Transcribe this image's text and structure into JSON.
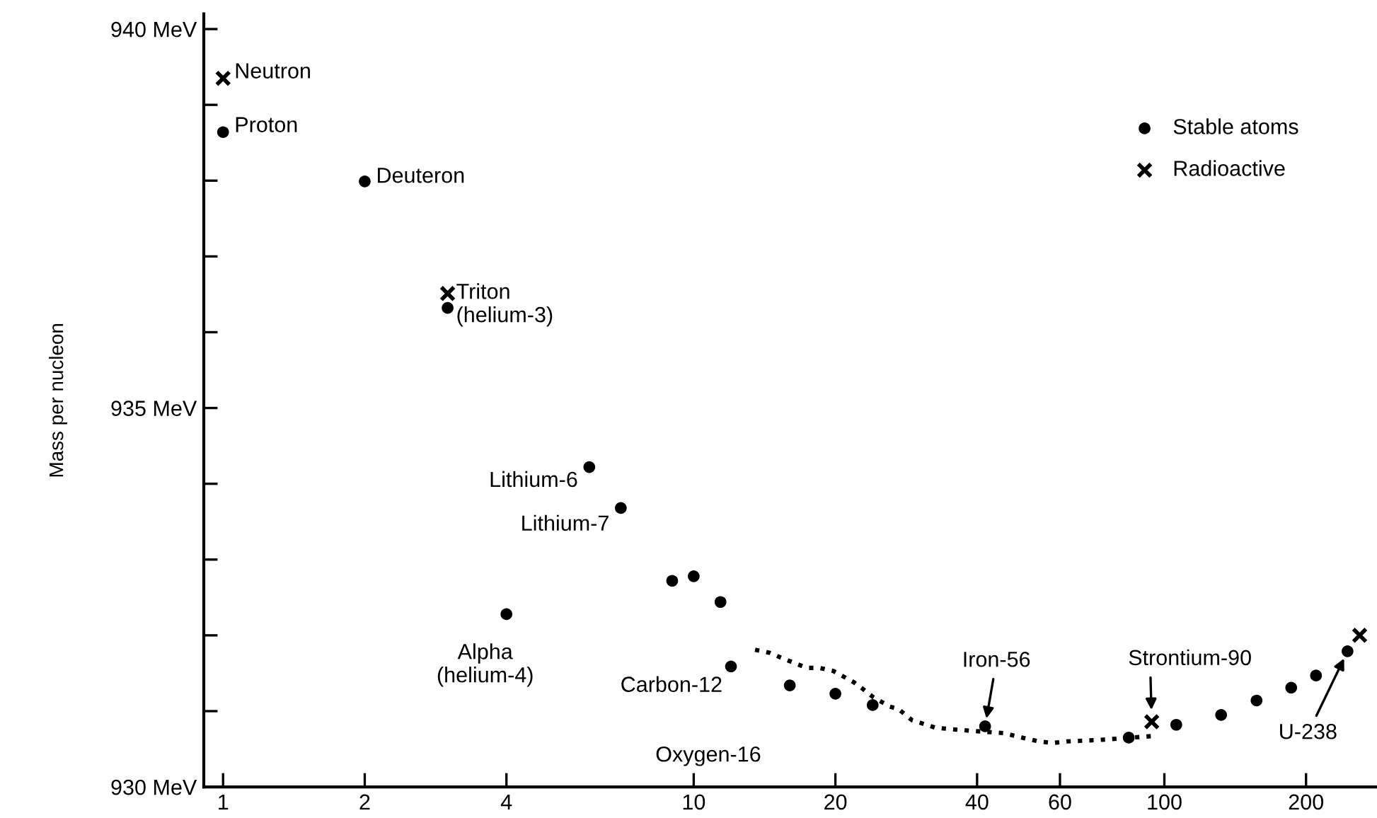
{
  "chart_data": {
    "type": "scatter",
    "ylabel": "Mass per nucleon",
    "log": "x",
    "xlim": [
      0.91,
      283
    ],
    "ylim": [
      930,
      940.2
    ],
    "xticks": [
      1,
      2,
      4,
      10,
      20,
      40,
      60,
      100,
      200
    ],
    "yticks": [
      {
        "value": 930,
        "label": "930 MeV"
      },
      {
        "value": 931,
        "label": null
      },
      {
        "value": 932,
        "label": null
      },
      {
        "value": 933,
        "label": null
      },
      {
        "value": 934,
        "label": null
      },
      {
        "value": 935,
        "label": "935 MeV"
      },
      {
        "value": 936,
        "label": null
      },
      {
        "value": 937,
        "label": null
      },
      {
        "value": 938,
        "label": null
      },
      {
        "value": 939,
        "label": null
      },
      {
        "value": 940,
        "label": "940 MeV"
      }
    ],
    "grid": false,
    "legend": "top right",
    "series": [
      {
        "name": "Stable atoms",
        "color": "#000000",
        "marker": "circle",
        "x": [
          1,
          2,
          3,
          4,
          6,
          7,
          9,
          10,
          11.4,
          12,
          16,
          20,
          24,
          41.6,
          84,
          106,
          132,
          157,
          186,
          210,
          245
        ],
        "values": [
          938.64,
          937.99,
          936.32,
          932.28,
          934.22,
          933.68,
          932.72,
          932.78,
          932.44,
          931.59,
          931.34,
          931.23,
          931.08,
          930.8,
          930.65,
          930.82,
          930.95,
          931.14,
          931.31,
          931.47,
          931.79
        ]
      },
      {
        "name": "Radioactive",
        "color": "#000000",
        "marker": "cross",
        "x": [
          1,
          3,
          94,
          260
        ],
        "values": [
          939.35,
          936.51,
          930.86,
          932.0
        ]
      },
      {
        "type": "line",
        "color": "#000000",
        "marker": "none",
        "line_style": "dotted",
        "x": [
          13.5,
          14.5,
          15.4,
          17.4,
          18.5,
          19.8,
          21.9,
          22.9,
          24.0,
          26.1,
          27.2,
          29.1,
          32.7,
          37.1,
          45.6,
          49.9,
          54.2,
          58.0,
          62.1,
          72.8,
          94.0
        ],
        "values": [
          931.81,
          931.77,
          931.7,
          931.57,
          931.57,
          931.53,
          931.38,
          931.29,
          931.19,
          931.06,
          931.03,
          930.88,
          930.78,
          930.75,
          930.71,
          930.65,
          930.6,
          930.58,
          930.6,
          930.62,
          930.67
        ]
      }
    ],
    "annotations": [
      {
        "text": "Neutron",
        "x": 1,
        "y": 939.35
      },
      {
        "text": "Proton",
        "x": 1,
        "y": 938.64
      },
      {
        "text": "Deuteron",
        "x": 2,
        "y": 937.99
      },
      {
        "text": "Triton\n(helium-3)",
        "x": 3,
        "y": 936.51
      },
      {
        "text": "Lithium-6",
        "x": 6,
        "y": 934.22
      },
      {
        "text": "Lithium-7",
        "x": 7,
        "y": 933.68
      },
      {
        "text": "Alpha\n(helium-4)",
        "x": 4,
        "y": 932.28
      },
      {
        "text": "Carbon-12",
        "x": 12,
        "y": 931.59
      },
      "Oxygen-16",
      {
        "text": "Iron-56",
        "x": 41.6,
        "y": 930.8
      },
      {
        "text": "Strontium-90",
        "x": 94,
        "y": 930.86
      },
      {
        "text": "U-238",
        "x": 245,
        "y": 931.79
      }
    ]
  }
}
